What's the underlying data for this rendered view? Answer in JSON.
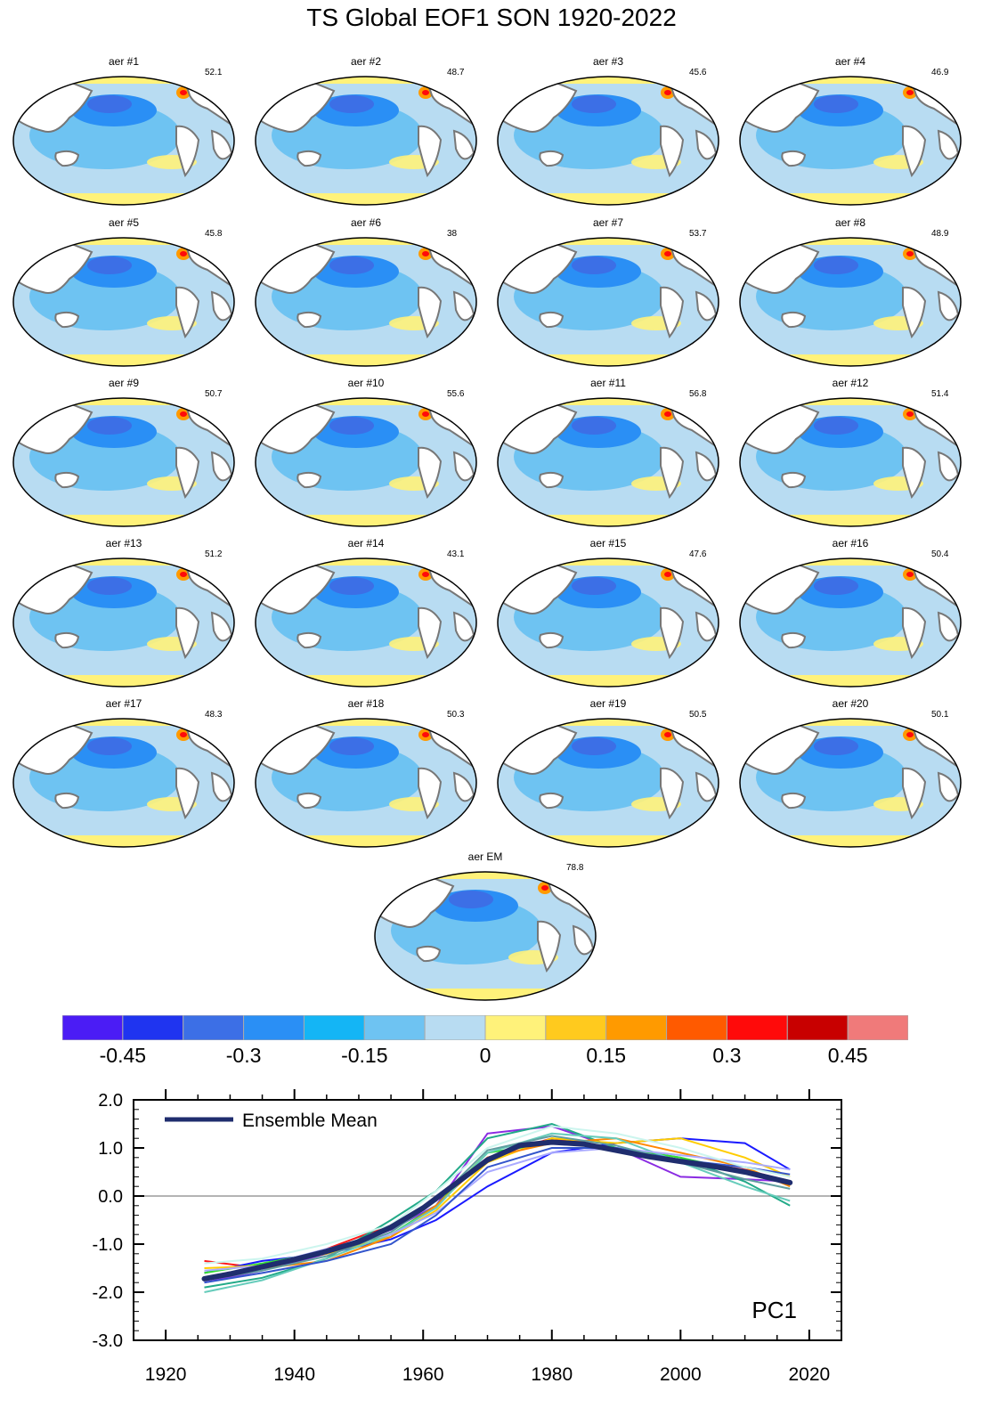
{
  "title": "TS Global EOF1 SON 1920-2022",
  "panels": [
    {
      "label": "aer #1",
      "pct": "52.1"
    },
    {
      "label": "aer #2",
      "pct": "48.7"
    },
    {
      "label": "aer #3",
      "pct": "45.6"
    },
    {
      "label": "aer #4",
      "pct": "46.9"
    },
    {
      "label": "aer #5",
      "pct": "45.8"
    },
    {
      "label": "aer #6",
      "pct": "38"
    },
    {
      "label": "aer #7",
      "pct": "53.7"
    },
    {
      "label": "aer #8",
      "pct": "48.9"
    },
    {
      "label": "aer #9",
      "pct": "50.7"
    },
    {
      "label": "aer #10",
      "pct": "55.6"
    },
    {
      "label": "aer #11",
      "pct": "56.8"
    },
    {
      "label": "aer #12",
      "pct": "51.4"
    },
    {
      "label": "aer #13",
      "pct": "51.2"
    },
    {
      "label": "aer #14",
      "pct": "43.1"
    },
    {
      "label": "aer #15",
      "pct": "47.6"
    },
    {
      "label": "aer #16",
      "pct": "50.4"
    },
    {
      "label": "aer #17",
      "pct": "48.3"
    },
    {
      "label": "aer #18",
      "pct": "50.3"
    },
    {
      "label": "aer #19",
      "pct": "50.5"
    },
    {
      "label": "aer #20",
      "pct": "50.1"
    },
    {
      "label": "aer EM",
      "pct": "78.8"
    }
  ],
  "colorbar": {
    "colors": [
      "#4b1cf5",
      "#1f34f0",
      "#3c6fe6",
      "#2a8ff5",
      "#14b5f5",
      "#6ec3f2",
      "#b8dcf2",
      "#fff27a",
      "#ffca1e",
      "#ff9a00",
      "#ff5a00",
      "#ff0a0a",
      "#c80000",
      "#f07a7a"
    ],
    "labels": [
      "-0.45",
      "-0.3",
      "-0.15",
      "0",
      "0.15",
      "0.3",
      "0.45"
    ]
  },
  "chart_data": {
    "type": "line",
    "title": "PC1",
    "xlim": [
      1915,
      2025
    ],
    "ylim": [
      -3.0,
      2.0
    ],
    "xticks": [
      "1920",
      "1940",
      "1960",
      "1980",
      "2000",
      "2020"
    ],
    "yticks": [
      "2.0",
      "1.0",
      "0.0",
      "-1.0",
      "-2.0",
      "-3.0"
    ],
    "legend": "Ensemble Mean",
    "legend_position": "top-left",
    "ensemble_mean": {
      "name": "Ensemble Mean",
      "color": "#1f2d6e",
      "x": [
        1926,
        1930,
        1935,
        1940,
        1945,
        1950,
        1955,
        1960,
        1965,
        1970,
        1975,
        1980,
        1985,
        1990,
        1995,
        2000,
        2005,
        2010,
        2017
      ],
      "y": [
        -1.72,
        -1.62,
        -1.47,
        -1.32,
        -1.15,
        -0.95,
        -0.65,
        -0.25,
        0.25,
        0.75,
        1.05,
        1.12,
        1.08,
        0.95,
        0.82,
        0.72,
        0.62,
        0.5,
        0.28
      ]
    },
    "members": [
      {
        "color": "#ff1a1a",
        "x": [
          1926,
          1935,
          1945,
          1955,
          1962,
          1970,
          1980,
          1990,
          2000,
          2010,
          2017
        ],
        "y": [
          -1.35,
          -1.5,
          -1.1,
          -0.6,
          -0.1,
          0.8,
          1.2,
          1.0,
          0.75,
          0.55,
          0.3
        ]
      },
      {
        "color": "#8a2be2",
        "x": [
          1926,
          1935,
          1945,
          1955,
          1962,
          1970,
          1980,
          1990,
          2000,
          2010,
          2017
        ],
        "y": [
          -1.8,
          -1.55,
          -1.2,
          -0.7,
          -0.2,
          1.3,
          1.45,
          1.0,
          0.4,
          0.35,
          0.3
        ]
      },
      {
        "color": "#1a1aff",
        "x": [
          1926,
          1935,
          1945,
          1955,
          1962,
          1970,
          1980,
          1990,
          2000,
          2010,
          2017
        ],
        "y": [
          -1.6,
          -1.35,
          -1.2,
          -0.9,
          -0.5,
          0.2,
          0.9,
          1.1,
          1.2,
          1.1,
          0.55
        ]
      },
      {
        "color": "#22aa88",
        "x": [
          1926,
          1935,
          1945,
          1955,
          1962,
          1970,
          1980,
          1990,
          2000,
          2010,
          2017
        ],
        "y": [
          -1.9,
          -1.7,
          -1.3,
          -0.5,
          0.1,
          1.2,
          1.5,
          1.0,
          0.8,
          0.3,
          -0.2
        ]
      },
      {
        "color": "#33dd33",
        "x": [
          1926,
          1935,
          1945,
          1955,
          1962,
          1970,
          1980,
          1990,
          2000,
          2010,
          2017
        ],
        "y": [
          -1.6,
          -1.4,
          -1.15,
          -0.8,
          -0.2,
          0.9,
          1.1,
          1.0,
          0.8,
          0.5,
          0.3
        ]
      },
      {
        "color": "#ffcc00",
        "x": [
          1926,
          1935,
          1945,
          1955,
          1962,
          1970,
          1980,
          1990,
          2000,
          2010,
          2017
        ],
        "y": [
          -1.5,
          -1.45,
          -1.2,
          -0.85,
          -0.3,
          0.7,
          1.2,
          1.1,
          1.2,
          0.8,
          0.4
        ]
      },
      {
        "color": "#ff8800",
        "x": [
          1926,
          1935,
          1945,
          1955,
          1962,
          1970,
          1980,
          1990,
          2000,
          2010,
          2017
        ],
        "y": [
          -1.7,
          -1.5,
          -1.35,
          -0.85,
          -0.2,
          0.8,
          1.1,
          1.2,
          0.9,
          0.6,
          0.2
        ]
      },
      {
        "color": "#66ccbb",
        "x": [
          1926,
          1935,
          1945,
          1955,
          1962,
          1970,
          1980,
          1990,
          2000,
          2010,
          2017
        ],
        "y": [
          -2.0,
          -1.75,
          -1.3,
          -0.8,
          -0.25,
          0.9,
          1.3,
          1.2,
          0.7,
          0.2,
          -0.1
        ]
      },
      {
        "color": "#aaaaff",
        "x": [
          1926,
          1935,
          1945,
          1955,
          1962,
          1970,
          1980,
          1990,
          2000,
          2010,
          2017
        ],
        "y": [
          -1.55,
          -1.45,
          -1.1,
          -0.8,
          -0.35,
          0.5,
          0.9,
          1.0,
          0.85,
          0.7,
          0.55
        ]
      },
      {
        "color": "#3355cc",
        "x": [
          1926,
          1935,
          1945,
          1955,
          1962,
          1970,
          1980,
          1990,
          2000,
          2010,
          2017
        ],
        "y": [
          -1.8,
          -1.6,
          -1.35,
          -1.0,
          -0.4,
          0.6,
          1.0,
          1.0,
          0.75,
          0.6,
          0.45
        ]
      },
      {
        "color": "#ccf5ee",
        "x": [
          1926,
          1935,
          1945,
          1955,
          1962,
          1970,
          1980,
          1990,
          2000,
          2010,
          2017
        ],
        "y": [
          -1.4,
          -1.3,
          -1.0,
          -0.6,
          0.1,
          1.0,
          1.45,
          1.3,
          1.0,
          0.6,
          0.4
        ]
      },
      {
        "color": "#5f9ea0",
        "x": [
          1926,
          1935,
          1945,
          1955,
          1962,
          1970,
          1980,
          1990,
          2000,
          2010,
          2017
        ],
        "y": [
          -1.75,
          -1.55,
          -1.25,
          -0.75,
          -0.1,
          0.95,
          1.25,
          1.05,
          0.7,
          0.35,
          0.15
        ]
      }
    ]
  }
}
